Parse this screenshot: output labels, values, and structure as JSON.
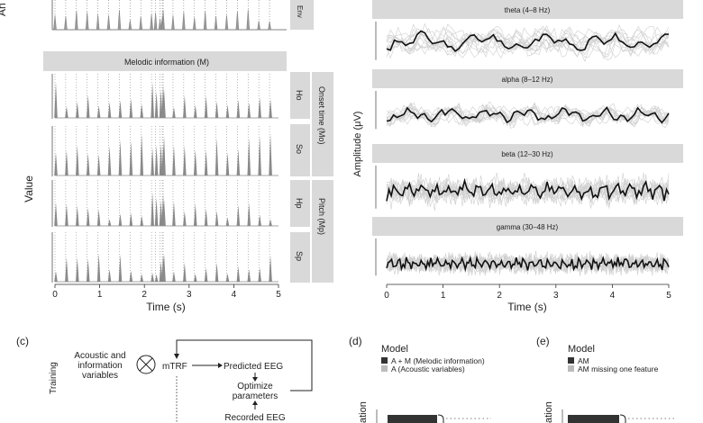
{
  "left_panel": {
    "top_partial_axis_label": "An",
    "top_partial_facet": "Env",
    "header": "Melodic information (M)",
    "y_label": "Value",
    "x_label": "Time (s)",
    "x_ticks": [
      "0",
      "1",
      "2",
      "3",
      "4",
      "5"
    ],
    "facets": [
      "Ho",
      "So",
      "Hp",
      "Sp"
    ],
    "group_labels": [
      "Onset time (Mo)",
      "Pitch (Mp)"
    ]
  },
  "right_panel": {
    "y_label": "Amplitude (μV)",
    "x_label": "Time (s)",
    "x_ticks": [
      "0",
      "1",
      "2",
      "3",
      "4",
      "5"
    ],
    "bands": [
      "theta (4–8 Hz)",
      "alpha (8–12 Hz)",
      "beta (12–30 Hz)",
      "gamma (30–48 Hz)"
    ]
  },
  "panel_c": {
    "label": "(c)",
    "row_label": "Training",
    "inputs": "Acoustic and information variables",
    "op": "mTRF",
    "predicted": "Predicted EEG",
    "optimize": "Optimize parameters",
    "recorded": "Recorded EEG"
  },
  "panel_d": {
    "label": "(d)",
    "legend_title": "Model",
    "legend": [
      "A + M (Melodic information)",
      "A (Acoustic variables)"
    ],
    "legend_colors": [
      "#333333",
      "#bbbbbb"
    ],
    "y_label_partial": "ation"
  },
  "panel_e": {
    "label": "(e)",
    "legend_title": "Model",
    "legend": [
      "AM",
      "AM missing one feature"
    ],
    "legend_colors": [
      "#333333",
      "#bbbbbb"
    ],
    "y_label_partial": "ation"
  }
}
